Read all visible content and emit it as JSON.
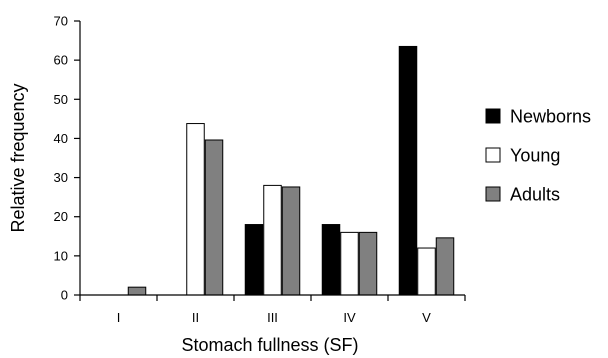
{
  "chart_data": {
    "type": "bar",
    "title": "",
    "xlabel": "Stomach fullness (SF)",
    "ylabel": "Relative frequency",
    "ylim": [
      0,
      70
    ],
    "yticks": [
      0,
      10,
      20,
      30,
      40,
      50,
      60,
      70
    ],
    "categories": [
      "I",
      "II",
      "III",
      "IV",
      "V"
    ],
    "series": [
      {
        "name": "Newborns",
        "color": "#000000",
        "values": [
          0,
          0,
          18,
          18,
          63.5
        ]
      },
      {
        "name": "Young",
        "color": "#ffffff",
        "values": [
          0,
          43.8,
          28,
          16,
          12
        ]
      },
      {
        "name": "Adults",
        "color": "#808080",
        "values": [
          2,
          39.6,
          27.6,
          16,
          14.6
        ]
      }
    ],
    "grid": false,
    "legend_position": "right"
  }
}
